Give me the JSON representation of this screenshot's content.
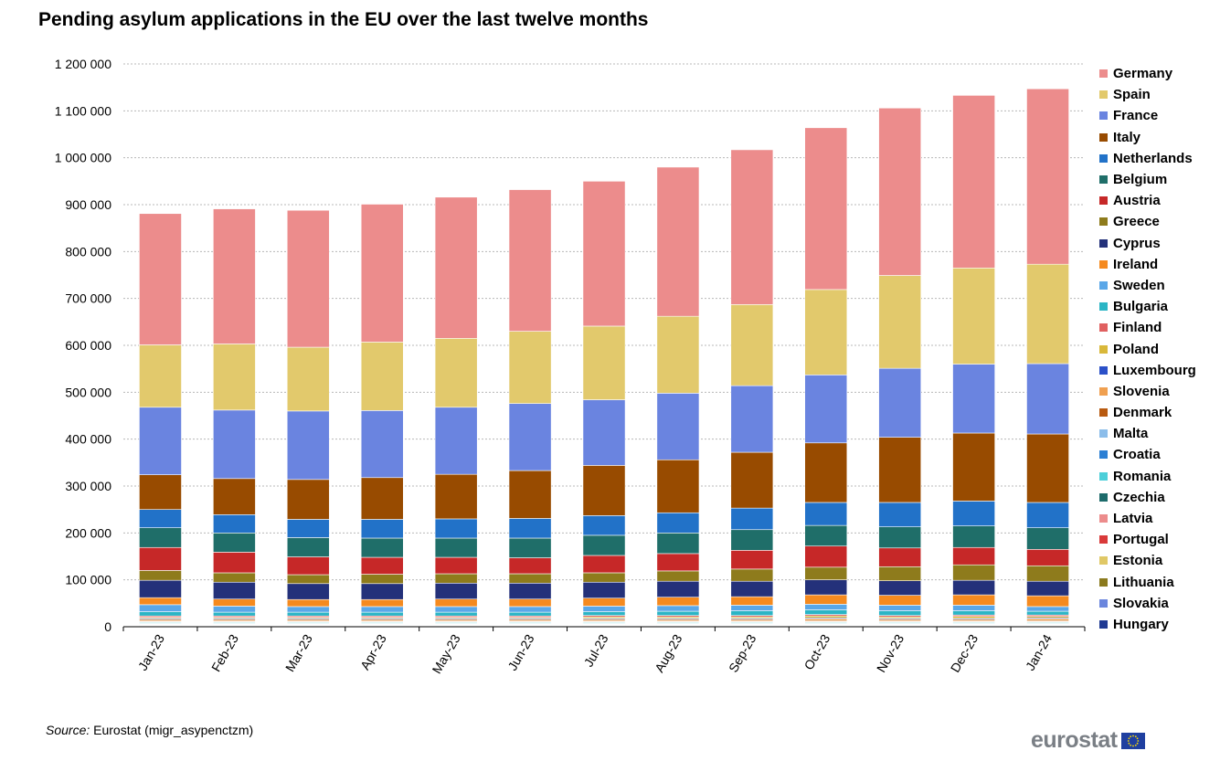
{
  "chart_data": {
    "type": "bar",
    "stacked": true,
    "title": "Pending asylum applications in the EU over the last twelve months",
    "xlabel": "",
    "ylabel": "",
    "ylim": [
      0,
      1200000
    ],
    "yticks": [
      0,
      100000,
      200000,
      300000,
      400000,
      500000,
      600000,
      700000,
      800000,
      900000,
      1000000,
      1100000,
      1200000
    ],
    "ytick_labels": [
      "0",
      "100 000",
      "200 000",
      "300 000",
      "400 000",
      "500 000",
      "600 000",
      "700 000",
      "800 000",
      "900 000",
      "1 000 000",
      "1 100 000",
      "1 200 000"
    ],
    "grid": true,
    "legend_position": "right",
    "categories": [
      "Jan-23",
      "Feb-23",
      "Mar-23",
      "Apr-23",
      "May-23",
      "Jun-23",
      "Jul-23",
      "Aug-23",
      "Sep-23",
      "Oct-23",
      "Nov-23",
      "Dec-23",
      "Jan-24"
    ],
    "series": [
      {
        "name": "Hungary",
        "color": "#1f3a93",
        "values": [
          1000,
          1000,
          1000,
          1000,
          1000,
          1000,
          1000,
          1000,
          1000,
          1000,
          1000,
          1000,
          1000
        ]
      },
      {
        "name": "Slovakia",
        "color": "#6b86dd",
        "values": [
          1000,
          1000,
          1000,
          1000,
          1000,
          1000,
          1000,
          1000,
          1000,
          1000,
          1000,
          1000,
          1000
        ]
      },
      {
        "name": "Lithuania",
        "color": "#8b7a1e",
        "values": [
          1000,
          1000,
          1000,
          1000,
          1000,
          1000,
          1000,
          1000,
          1000,
          1000,
          1000,
          1000,
          1000
        ]
      },
      {
        "name": "Estonia",
        "color": "#e0c866",
        "values": [
          1000,
          1000,
          1000,
          1000,
          1000,
          1000,
          1000,
          1000,
          1000,
          1000,
          1000,
          1000,
          1000
        ]
      },
      {
        "name": "Portugal",
        "color": "#d93a3a",
        "values": [
          1000,
          1000,
          1000,
          1000,
          1000,
          1000,
          1000,
          1000,
          1000,
          1000,
          1000,
          1000,
          1000
        ]
      },
      {
        "name": "Latvia",
        "color": "#ec8c8c",
        "values": [
          1000,
          1000,
          1000,
          1000,
          1000,
          1000,
          1000,
          1000,
          1000,
          1000,
          1000,
          1000,
          1000
        ]
      },
      {
        "name": "Czechia",
        "color": "#1d6b6b",
        "values": [
          1000,
          1000,
          1000,
          1000,
          1000,
          1000,
          1000,
          1000,
          1000,
          1000,
          1000,
          1000,
          1000
        ]
      },
      {
        "name": "Romania",
        "color": "#4ccfd9",
        "values": [
          2000,
          2000,
          2000,
          2000,
          2000,
          2000,
          2000,
          2000,
          2000,
          2000,
          2000,
          2000,
          2000
        ]
      },
      {
        "name": "Croatia",
        "color": "#2b7fd4",
        "values": [
          1000,
          1000,
          1000,
          1000,
          1000,
          1000,
          1000,
          1000,
          1000,
          1000,
          1000,
          1000,
          1000
        ]
      },
      {
        "name": "Malta",
        "color": "#8bbdea",
        "values": [
          1000,
          1000,
          1000,
          1000,
          1000,
          1000,
          1000,
          1000,
          1000,
          1000,
          1000,
          1000,
          1000
        ]
      },
      {
        "name": "Denmark",
        "color": "#b85a10",
        "values": [
          2000,
          2000,
          2000,
          2000,
          2000,
          2000,
          2000,
          2000,
          2000,
          2000,
          2000,
          2000,
          2000
        ]
      },
      {
        "name": "Slovenia",
        "color": "#f0a050",
        "values": [
          3000,
          3000,
          3000,
          3000,
          3000,
          3000,
          3000,
          3000,
          3000,
          4000,
          3000,
          3000,
          4000
        ]
      },
      {
        "name": "Luxembourg",
        "color": "#2b50c8",
        "values": [
          2000,
          2000,
          2000,
          2000,
          2000,
          2000,
          2000,
          2000,
          2000,
          2000,
          2000,
          2000,
          2000
        ]
      },
      {
        "name": "Poland",
        "color": "#d9b83a",
        "values": [
          2000,
          2000,
          2000,
          2000,
          2000,
          2000,
          3000,
          3000,
          3000,
          4000,
          3000,
          4000,
          3000
        ]
      },
      {
        "name": "Finland",
        "color": "#e06060",
        "values": [
          3000,
          3000,
          3000,
          3000,
          3000,
          3000,
          3000,
          3000,
          3000,
          3000,
          3000,
          3000,
          3000
        ]
      },
      {
        "name": "Bulgaria",
        "color": "#2bb5c5",
        "values": [
          9000,
          8000,
          8000,
          8000,
          8000,
          8000,
          8000,
          9000,
          10000,
          10000,
          10000,
          9000,
          8000
        ]
      },
      {
        "name": "Sweden",
        "color": "#5aa7e8",
        "values": [
          15000,
          13000,
          12000,
          12000,
          12000,
          12000,
          12000,
          12000,
          12000,
          12000,
          12000,
          12000,
          10000
        ]
      },
      {
        "name": "Ireland",
        "color": "#f58a1f",
        "values": [
          15000,
          15000,
          15000,
          15000,
          16000,
          16000,
          17000,
          18000,
          18000,
          20000,
          21000,
          22000,
          23000
        ]
      },
      {
        "name": "Cyprus",
        "color": "#24317a",
        "values": [
          37000,
          36000,
          34000,
          34000,
          34000,
          34000,
          34000,
          34000,
          33000,
          32000,
          31000,
          31000,
          31000
        ]
      },
      {
        "name": "Greece",
        "color": "#8e7b1c",
        "values": [
          21000,
          20000,
          19000,
          20000,
          20000,
          20000,
          20000,
          22000,
          26000,
          27000,
          30000,
          33000,
          33000
        ]
      },
      {
        "name": "Austria",
        "color": "#c62828",
        "values": [
          49000,
          44000,
          38000,
          36000,
          35000,
          34000,
          37000,
          37000,
          40000,
          45000,
          40000,
          37000,
          35000
        ]
      },
      {
        "name": "Belgium",
        "color": "#1f6e69",
        "values": [
          42000,
          41000,
          41000,
          41000,
          41000,
          42000,
          43000,
          44000,
          44000,
          44000,
          45000,
          46000,
          46000
        ]
      },
      {
        "name": "Netherlands",
        "color": "#2272c8",
        "values": [
          39000,
          39000,
          39000,
          40000,
          41000,
          42000,
          42000,
          43000,
          46000,
          49000,
          52000,
          53000,
          54000
        ]
      },
      {
        "name": "Italy",
        "color": "#984b00",
        "values": [
          74000,
          77000,
          85000,
          89000,
          95000,
          102000,
          107000,
          113000,
          119000,
          127000,
          139000,
          145000,
          146000
        ]
      },
      {
        "name": "France",
        "color": "#6a84e0",
        "values": [
          144000,
          146000,
          146000,
          143000,
          143000,
          143000,
          140000,
          142000,
          142000,
          145000,
          147000,
          147000,
          150000
        ]
      },
      {
        "name": "Spain",
        "color": "#e2c96c",
        "values": [
          133000,
          141000,
          136000,
          146000,
          147000,
          154000,
          157000,
          164000,
          173000,
          182000,
          198000,
          205000,
          212000
        ]
      },
      {
        "name": "Germany",
        "color": "#ec8c8c",
        "values": [
          280000,
          288000,
          292000,
          294000,
          301000,
          302000,
          309000,
          318000,
          330000,
          345000,
          357000,
          368000,
          374000
        ]
      }
    ]
  },
  "legend_order": [
    "Germany",
    "Spain",
    "France",
    "Italy",
    "Netherlands",
    "Belgium",
    "Austria",
    "Greece",
    "Cyprus",
    "Ireland",
    "Sweden",
    "Bulgaria",
    "Finland",
    "Poland",
    "Luxembourg",
    "Slovenia",
    "Denmark",
    "Malta",
    "Croatia",
    "Romania",
    "Czechia",
    "Latvia",
    "Portugal",
    "Estonia",
    "Lithuania",
    "Slovakia",
    "Hungary"
  ],
  "source": {
    "label": "Source:",
    "text": " Eurostat (migr_asypenctzm)"
  },
  "logo": {
    "text": "eurostat"
  }
}
